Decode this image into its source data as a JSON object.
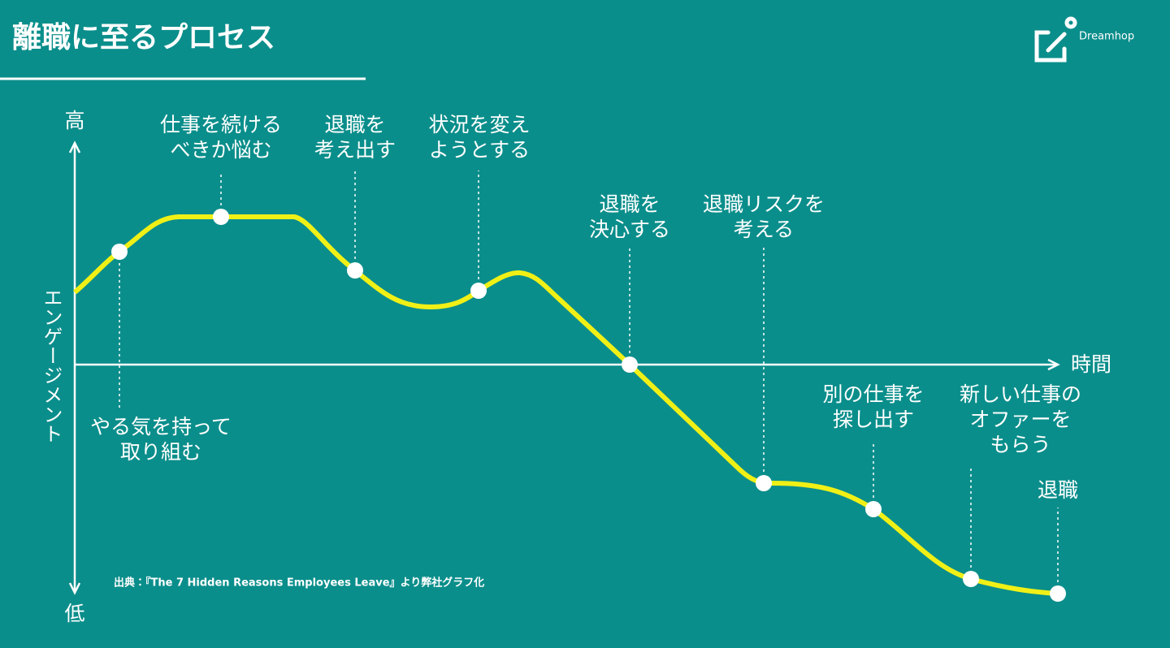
{
  "header": {
    "title": "離職に至るプロセス",
    "logo": "Dreamhop"
  },
  "axes": {
    "y_high": "高",
    "y_low": "低",
    "y_label": "エンゲージメント",
    "x_label": "時間"
  },
  "stages": [
    {
      "lines": [
        "やる気を持って",
        "取り組む"
      ]
    },
    {
      "lines": [
        "仕事を続ける",
        "べきか悩む"
      ]
    },
    {
      "lines": [
        "退職を",
        "考え出す"
      ]
    },
    {
      "lines": [
        "状況を変え",
        "ようとする"
      ]
    },
    {
      "lines": [
        "退職を",
        "決心する"
      ]
    },
    {
      "lines": [
        "退職リスクを",
        "考える"
      ]
    },
    {
      "lines": [
        "別の仕事を",
        "探し出す"
      ]
    },
    {
      "lines": [
        "新しい仕事の",
        "オファーを",
        "もらう"
      ]
    },
    {
      "lines": [
        "退職"
      ]
    }
  ],
  "source": "出典：『The 7 Hidden Reasons Employees Leave』より弊社グラフ化"
}
